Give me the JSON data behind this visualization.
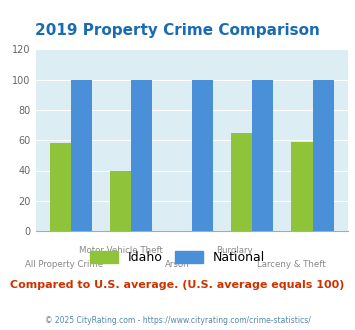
{
  "title": "2019 Property Crime Comparison",
  "title_color": "#1a6bb5",
  "categories": [
    "All Property Crime",
    "Motor Vehicle Theft",
    "Arson",
    "Burglary",
    "Larceny & Theft"
  ],
  "idaho_values": [
    58,
    40,
    0,
    65,
    59
  ],
  "national_values": [
    100,
    100,
    100,
    100,
    100
  ],
  "idaho_color": "#8fc33a",
  "national_color": "#4a90d9",
  "plot_bg": "#dceef3",
  "ylim": [
    0,
    120
  ],
  "yticks": [
    0,
    20,
    40,
    60,
    80,
    100,
    120
  ],
  "legend_labels": [
    "Idaho",
    "National"
  ],
  "subtitle": "Compared to U.S. average. (U.S. average equals 100)",
  "subtitle_color": "#cc3300",
  "footer": "© 2025 CityRating.com - https://www.cityrating.com/crime-statistics/",
  "footer_color": "#5588aa",
  "bar_width": 0.35,
  "row1_labels": {
    "1": "Motor Vehicle Theft",
    "3": "Burglary"
  },
  "row2_labels": {
    "0": "All Property Crime",
    "2": "Arson",
    "4": "Larceny & Theft"
  }
}
